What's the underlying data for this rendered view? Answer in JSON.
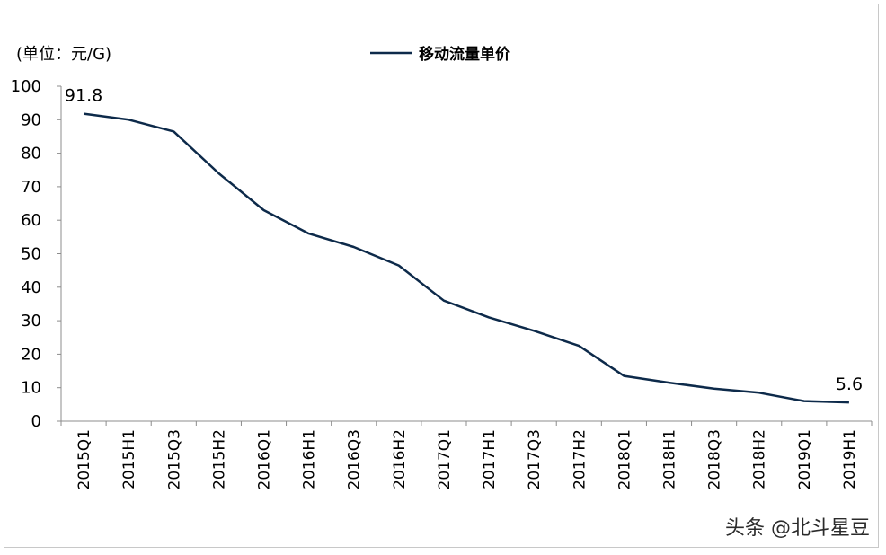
{
  "chart_data": {
    "type": "line",
    "unit_label": "(单位：元/G)",
    "categories": [
      "2015Q1",
      "2015H1",
      "2015Q3",
      "2015H2",
      "2016Q1",
      "2016H1",
      "2016Q3",
      "2016H2",
      "2017Q1",
      "2017H1",
      "2017Q3",
      "2017H2",
      "2018Q1",
      "2018H1",
      "2018Q3",
      "2018H2",
      "2019Q1",
      "2019H1"
    ],
    "series": [
      {
        "name": "移动流量单价",
        "color": "#0d2a4a",
        "values": [
          91.8,
          90,
          86.5,
          74,
          63,
          56,
          52,
          46.5,
          36,
          31,
          27,
          22.5,
          13.5,
          11.5,
          9.7,
          8.5,
          6,
          5.6
        ]
      }
    ],
    "ylim": [
      0,
      100
    ],
    "yticks": [
      0,
      10,
      20,
      30,
      40,
      50,
      60,
      70,
      80,
      90,
      100
    ],
    "data_labels": [
      {
        "index": 0,
        "text": "91.8"
      },
      {
        "index": 17,
        "text": "5.6"
      }
    ],
    "legend_position": "top-center",
    "grid": false
  },
  "watermark": "头条 @北斗星豆"
}
